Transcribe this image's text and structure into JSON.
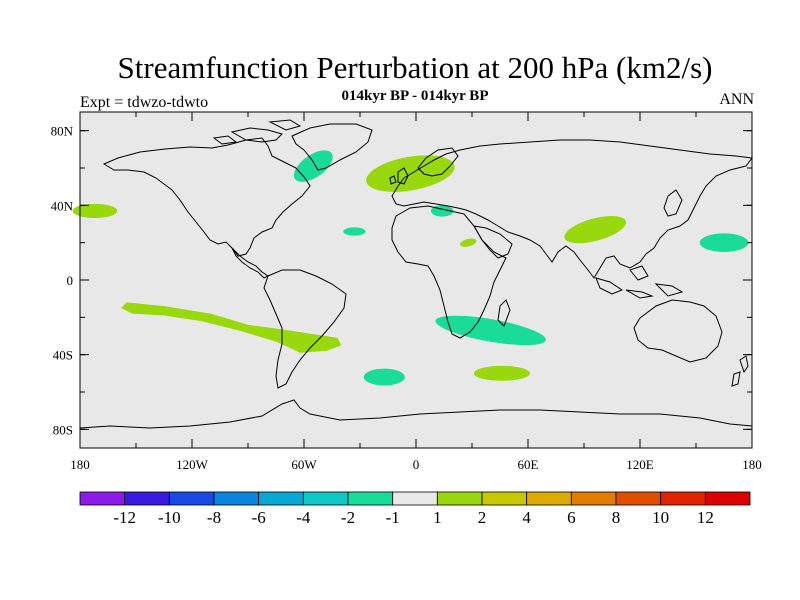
{
  "title": "Streamfunction Perturbation at 200 hPa (km2/s)",
  "subtitle": "014kyr BP - 014kyr BP",
  "left_label": "Expt = tdwzo-tdwto",
  "right_label": "ANN",
  "chart_data": {
    "type": "map",
    "projection": "cylindrical-equidistant",
    "xlim": [
      -180,
      180
    ],
    "ylim": [
      -90,
      90
    ],
    "x_ticks": [
      {
        "value": -180,
        "label": "180"
      },
      {
        "value": -120,
        "label": "120W"
      },
      {
        "value": -60,
        "label": "60W"
      },
      {
        "value": 0,
        "label": "0"
      },
      {
        "value": 60,
        "label": "60E"
      },
      {
        "value": 120,
        "label": "120E"
      },
      {
        "value": 180,
        "label": "180"
      }
    ],
    "y_ticks": [
      {
        "value": 80,
        "label": "80N"
      },
      {
        "value": 40,
        "label": "40N"
      },
      {
        "value": 0,
        "label": "0"
      },
      {
        "value": -40,
        "label": "40S"
      },
      {
        "value": -80,
        "label": "80S"
      }
    ],
    "background_color": "#e8e8e8",
    "colorbar": {
      "labels": [
        "-12",
        "-10",
        "-8",
        "-6",
        "-4",
        "-2",
        "-1",
        "1",
        "2",
        "4",
        "6",
        "8",
        "10",
        "12"
      ],
      "colors": [
        "#8c1ae8",
        "#3a1ae0",
        "#1a4ae6",
        "#0a84dc",
        "#08a8d4",
        "#0ec8c8",
        "#18dc98",
        "#e8e8e8",
        "#98d80c",
        "#c8c800",
        "#dcaa00",
        "#e07c00",
        "#e04e00",
        "#e02400",
        "#dc0000"
      ]
    },
    "regions": [
      {
        "lon": -55,
        "lat": 61,
        "rx": 12,
        "ry": 6,
        "rot": -35,
        "level": "-2",
        "color": "#18dc98"
      },
      {
        "lon": -172,
        "lat": 37,
        "rx": 12,
        "ry": 3.8,
        "rot": 0,
        "level": "2",
        "color": "#98d80c"
      },
      {
        "lon": -3,
        "lat": 57,
        "rx": 24,
        "ry": 9,
        "rot": -10,
        "level": "2",
        "color": "#98d80c"
      },
      {
        "lon": 14,
        "lat": 37,
        "rx": 6,
        "ry": 3,
        "rot": 0,
        "level": "-2",
        "color": "#18dc98"
      },
      {
        "lon": -33,
        "lat": 26,
        "rx": 6,
        "ry": 2.2,
        "rot": 0,
        "level": "-2",
        "color": "#18dc98"
      },
      {
        "lon": 28,
        "lat": 20,
        "rx": 4.5,
        "ry": 2,
        "rot": -15,
        "level": "2",
        "color": "#98d80c"
      },
      {
        "lon": 96,
        "lat": 27,
        "rx": 17,
        "ry": 6,
        "rot": -15,
        "level": "2",
        "color": "#98d80c"
      },
      {
        "lon": 165,
        "lat": 20,
        "rx": 13,
        "ry": 5,
        "rot": 0,
        "level": "-2",
        "color": "#18dc98"
      },
      {
        "lon": 40,
        "lat": -27,
        "rx": 30,
        "ry": 6,
        "rot": 10,
        "level": "-2",
        "color": "#18dc98"
      },
      {
        "lon": -17,
        "lat": -52,
        "rx": 11,
        "ry": 4.5,
        "rot": 0,
        "level": "-2",
        "color": "#18dc98"
      },
      {
        "lon": 46,
        "lat": -50,
        "rx": 15,
        "ry": 4,
        "rot": 0,
        "level": "2",
        "color": "#98d80c"
      }
    ],
    "bands": [
      {
        "level": "2",
        "color": "#98d80c",
        "points": [
          [
            -155,
            -12
          ],
          [
            -135,
            -14
          ],
          [
            -110,
            -18
          ],
          [
            -90,
            -24
          ],
          [
            -75,
            -26
          ],
          [
            -55,
            -29
          ],
          [
            -42,
            -31
          ],
          [
            -40,
            -35
          ],
          [
            -48,
            -38
          ],
          [
            -62,
            -39
          ],
          [
            -75,
            -33
          ],
          [
            -95,
            -27
          ],
          [
            -115,
            -22
          ],
          [
            -135,
            -19
          ],
          [
            -152,
            -18
          ],
          [
            -158,
            -15
          ]
        ]
      }
    ]
  }
}
